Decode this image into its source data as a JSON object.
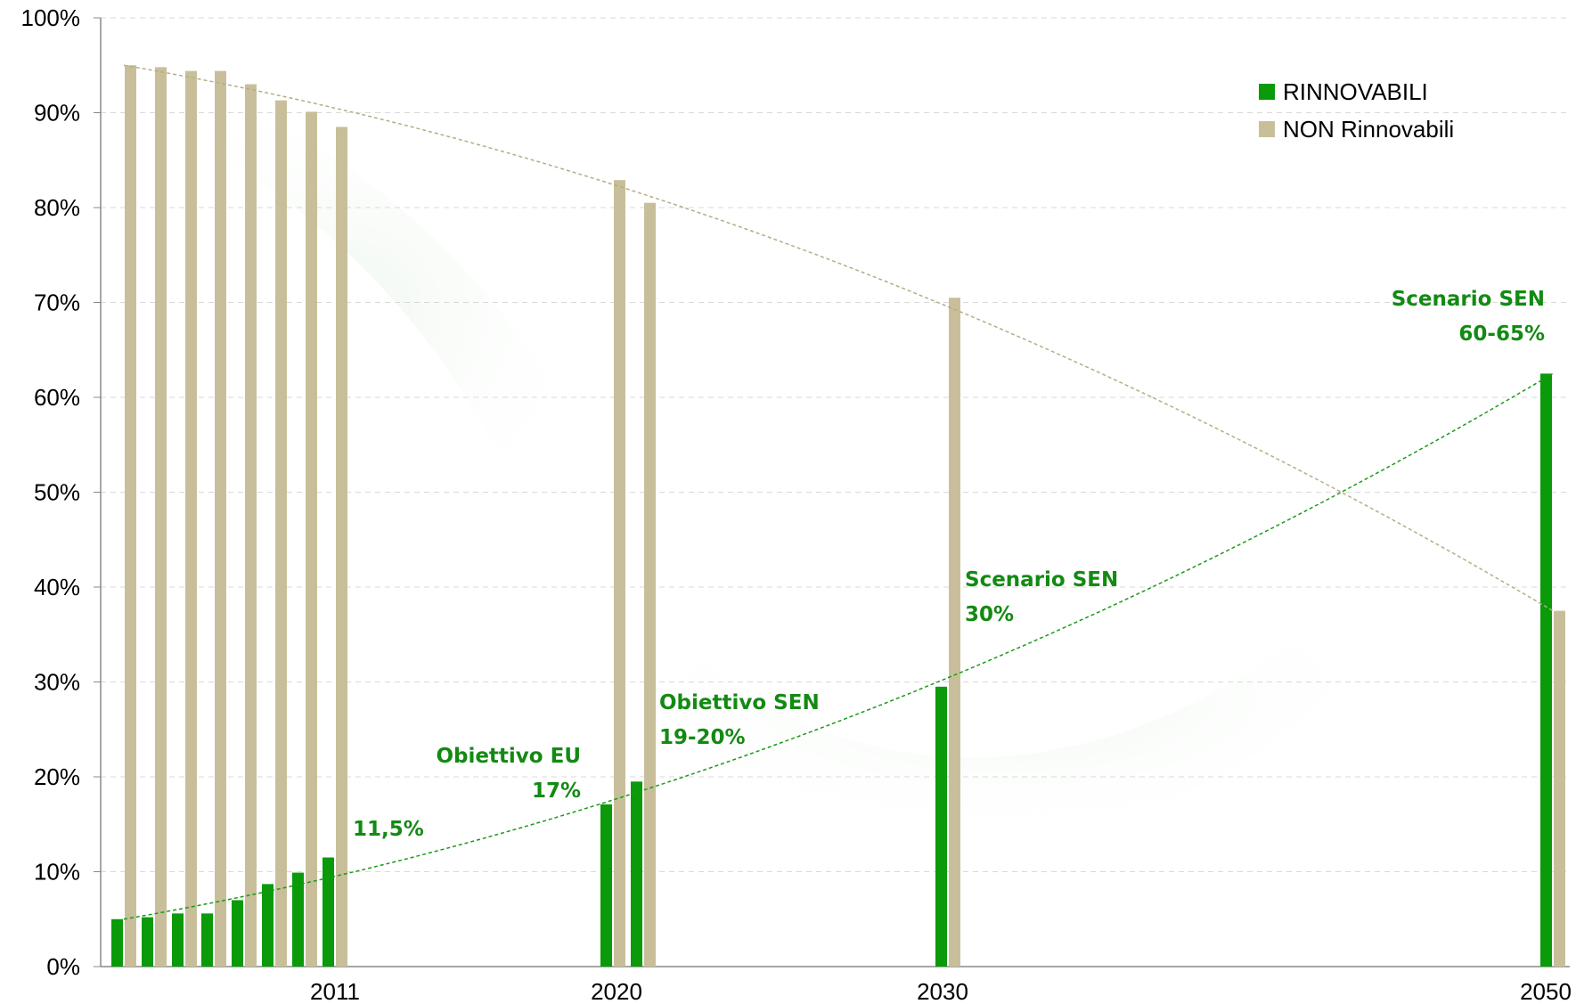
{
  "chart_data": {
    "type": "bar",
    "ylim": [
      0,
      100
    ],
    "yticks": [
      "0%",
      "10%",
      "20%",
      "30%",
      "40%",
      "50%",
      "60%",
      "70%",
      "80%",
      "90%",
      "100%"
    ],
    "x_labels": [
      "2011",
      "2020",
      "2030",
      "2050"
    ],
    "legend_position": "top-right",
    "grid": "horizontal dashed",
    "colors": {
      "renewable": "#0a9a0a",
      "non_renewable": "#c8bf9a",
      "annotation": "#138a13"
    },
    "series": [
      {
        "name": "RINNOVABILI",
        "points": [
          {
            "x": "",
            "y": 5.0
          },
          {
            "x": "",
            "y": 5.2
          },
          {
            "x": "",
            "y": 5.6
          },
          {
            "x": "",
            "y": 5.6
          },
          {
            "x": "",
            "y": 7.0
          },
          {
            "x": "",
            "y": 8.7
          },
          {
            "x": "",
            "y": 9.9
          },
          {
            "x": "2011",
            "y": 11.5
          },
          {
            "x": "",
            "y": 17.1
          },
          {
            "x": "2020",
            "y": 19.5
          },
          {
            "x": "2030",
            "y": 29.5
          },
          {
            "x": "2050",
            "y": 62.5
          }
        ]
      },
      {
        "name": "NON Rinnovabili",
        "points": [
          {
            "x": "",
            "y": 95.0
          },
          {
            "x": "",
            "y": 94.8
          },
          {
            "x": "",
            "y": 94.4
          },
          {
            "x": "",
            "y": 94.4
          },
          {
            "x": "",
            "y": 93.0
          },
          {
            "x": "",
            "y": 91.3
          },
          {
            "x": "",
            "y": 90.1
          },
          {
            "x": "2011",
            "y": 88.5
          },
          {
            "x": "",
            "y": 82.9
          },
          {
            "x": "2020",
            "y": 80.5
          },
          {
            "x": "2030",
            "y": 70.5
          },
          {
            "x": "2050",
            "y": 37.5
          }
        ]
      }
    ],
    "annotations": [
      {
        "lines": [
          "11,5%"
        ]
      },
      {
        "lines": [
          "Obiettivo EU",
          "17%"
        ]
      },
      {
        "lines": [
          "Obiettivo SEN",
          "19-20%"
        ]
      },
      {
        "lines": [
          "Scenario SEN",
          "30%"
        ]
      },
      {
        "lines": [
          "Scenario SEN",
          "60-65%"
        ]
      }
    ]
  }
}
